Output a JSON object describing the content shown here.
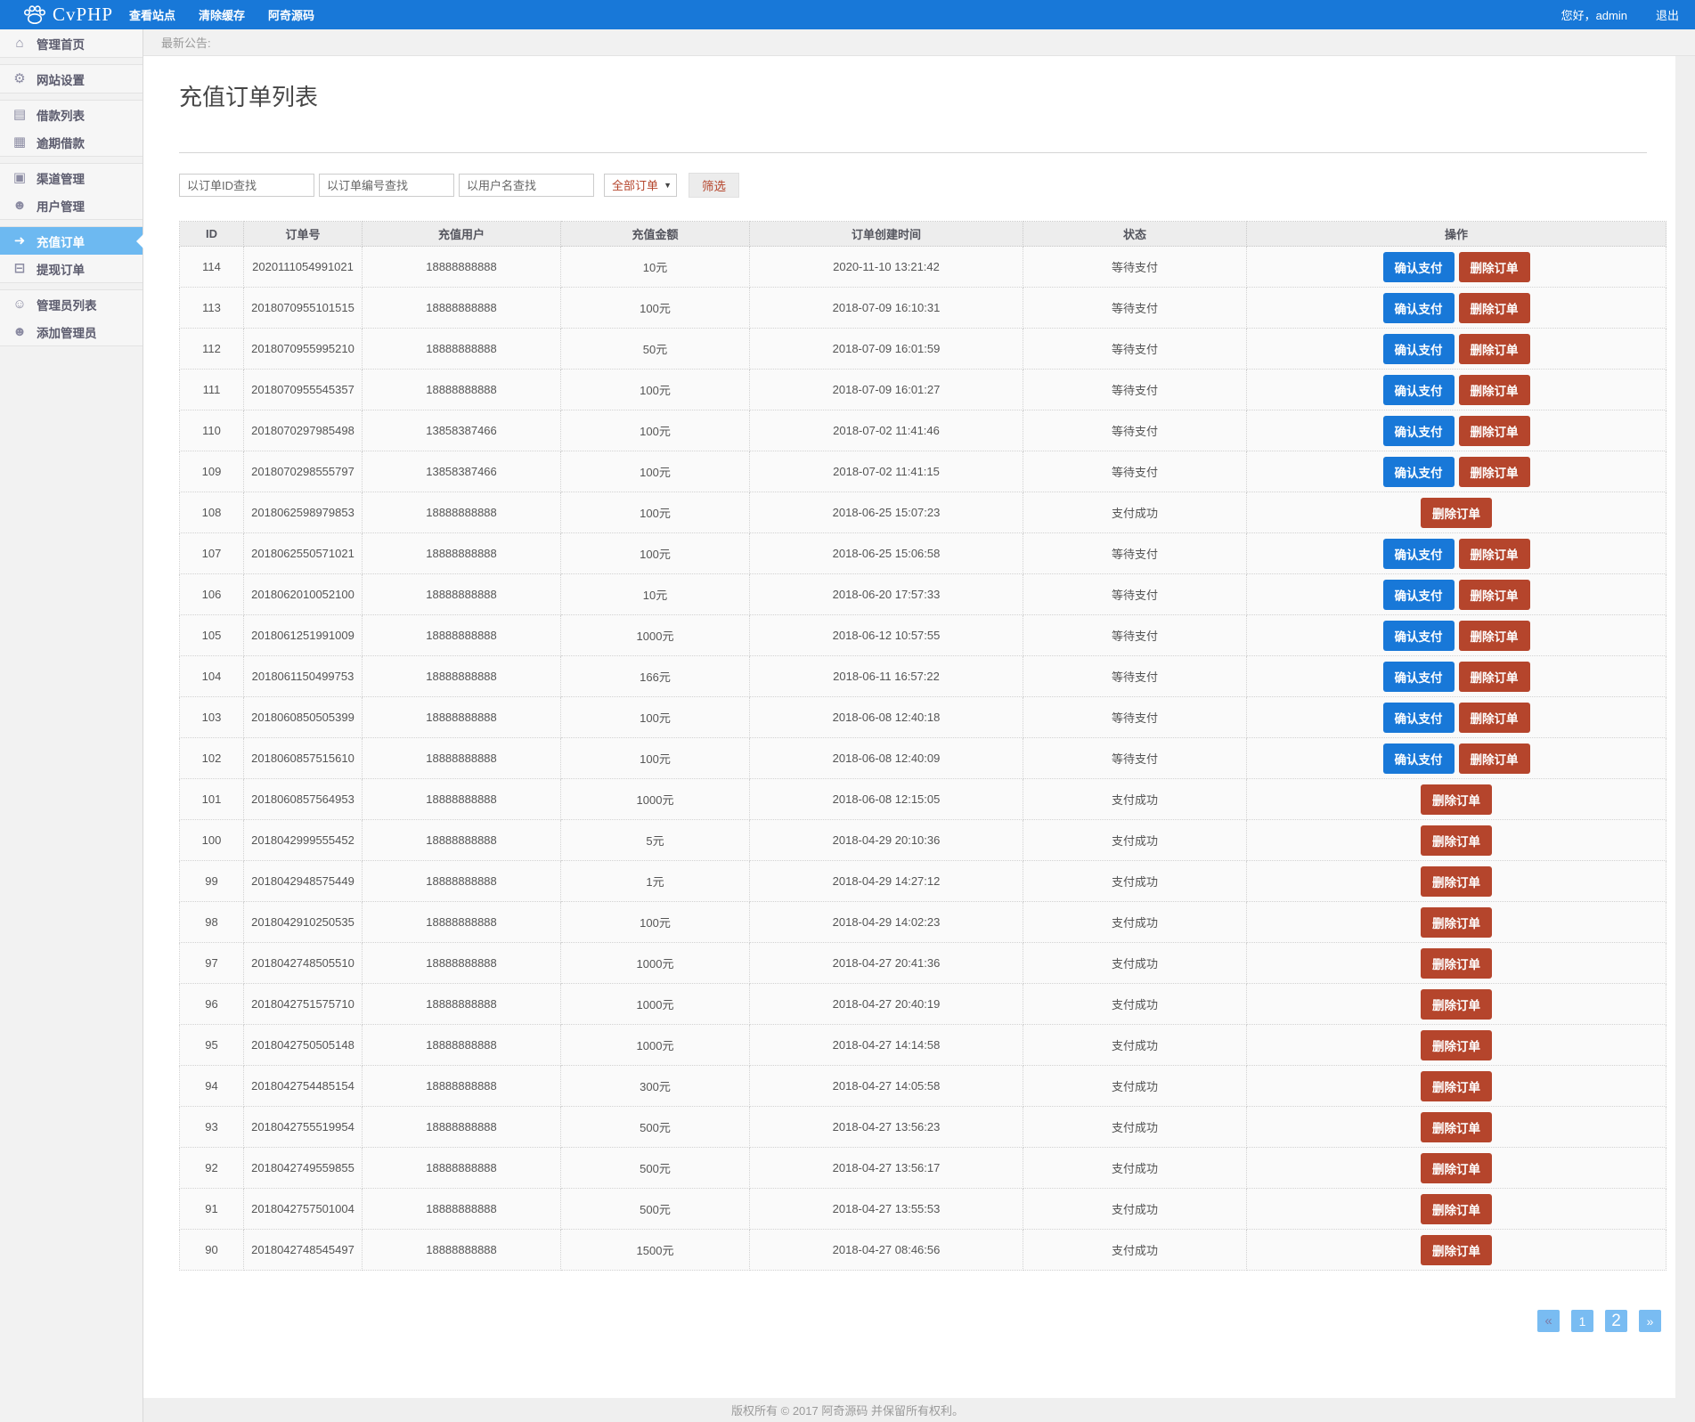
{
  "navbar": {
    "brand": "CvPHP",
    "menu": [
      {
        "key": "view-site",
        "label": "查看站点"
      },
      {
        "key": "clear-cache",
        "label": "清除缓存"
      },
      {
        "key": "aqi-source",
        "label": "阿奇源码"
      }
    ],
    "greeting": "您好，admin",
    "logout_label": "退出"
  },
  "announcement": {
    "label": "最新公告:"
  },
  "sidebar": {
    "groups": [
      {
        "items": [
          {
            "key": "home",
            "icon": "home-icon",
            "glyph": "⌂",
            "label": "管理首页"
          }
        ]
      },
      {
        "items": [
          {
            "key": "site-settings",
            "icon": "gear-icon",
            "glyph": "⚙",
            "label": "网站设置"
          }
        ]
      },
      {
        "items": [
          {
            "key": "loan-list",
            "icon": "book-icon",
            "glyph": "▤",
            "label": "借款列表"
          },
          {
            "key": "overdue-loans",
            "icon": "table-icon",
            "glyph": "▦",
            "label": "逾期借款"
          }
        ]
      },
      {
        "items": [
          {
            "key": "channel-management",
            "icon": "bookmark-icon",
            "glyph": "▣",
            "label": "渠道管理"
          },
          {
            "key": "user-management",
            "icon": "user-icon",
            "glyph": "☻",
            "label": "用户管理"
          }
        ]
      },
      {
        "items": [
          {
            "key": "recharge-orders",
            "icon": "sign-in-icon",
            "glyph": "➜",
            "label": "充值订单",
            "active": true
          },
          {
            "key": "withdraw-orders",
            "icon": "money-icon",
            "glyph": "⊟",
            "label": "提现订单"
          }
        ]
      },
      {
        "items": [
          {
            "key": "admin-list",
            "icon": "user-outline-icon",
            "glyph": "☺",
            "label": "管理员列表"
          },
          {
            "key": "add-admin",
            "icon": "user-add-icon",
            "glyph": "☻",
            "label": "添加管理员"
          }
        ]
      }
    ]
  },
  "page": {
    "title": "充值订单列表"
  },
  "filters": {
    "order_id_placeholder": "以订单ID查找",
    "order_no_placeholder": "以订单编号查找",
    "username_placeholder": "以用户名查找",
    "status_selected": "全部订单",
    "submit_label": "筛选"
  },
  "table": {
    "headers": [
      "ID",
      "订单号",
      "充值用户",
      "充值金额",
      "订单创建时间",
      "状态",
      "操作"
    ],
    "confirm_label": "确认支付",
    "delete_label": "删除订单",
    "rows": [
      {
        "id": "114",
        "order_no": "2020111054991021",
        "user": "18888888888",
        "amount": "10元",
        "created": "2020-11-10 13:21:42",
        "status": "等待支付",
        "actions": [
          "confirm",
          "delete"
        ]
      },
      {
        "id": "113",
        "order_no": "2018070955101515",
        "user": "18888888888",
        "amount": "100元",
        "created": "2018-07-09 16:10:31",
        "status": "等待支付",
        "actions": [
          "confirm",
          "delete"
        ]
      },
      {
        "id": "112",
        "order_no": "2018070955995210",
        "user": "18888888888",
        "amount": "50元",
        "created": "2018-07-09 16:01:59",
        "status": "等待支付",
        "actions": [
          "confirm",
          "delete"
        ]
      },
      {
        "id": "111",
        "order_no": "2018070955545357",
        "user": "18888888888",
        "amount": "100元",
        "created": "2018-07-09 16:01:27",
        "status": "等待支付",
        "actions": [
          "confirm",
          "delete"
        ]
      },
      {
        "id": "110",
        "order_no": "2018070297985498",
        "user": "13858387466",
        "amount": "100元",
        "created": "2018-07-02 11:41:46",
        "status": "等待支付",
        "actions": [
          "confirm",
          "delete"
        ]
      },
      {
        "id": "109",
        "order_no": "2018070298555797",
        "user": "13858387466",
        "amount": "100元",
        "created": "2018-07-02 11:41:15",
        "status": "等待支付",
        "actions": [
          "confirm",
          "delete"
        ]
      },
      {
        "id": "108",
        "order_no": "2018062598979853",
        "user": "18888888888",
        "amount": "100元",
        "created": "2018-06-25 15:07:23",
        "status": "支付成功",
        "actions": [
          "delete"
        ]
      },
      {
        "id": "107",
        "order_no": "2018062550571021",
        "user": "18888888888",
        "amount": "100元",
        "created": "2018-06-25 15:06:58",
        "status": "等待支付",
        "actions": [
          "confirm",
          "delete"
        ]
      },
      {
        "id": "106",
        "order_no": "2018062010052100",
        "user": "18888888888",
        "amount": "10元",
        "created": "2018-06-20 17:57:33",
        "status": "等待支付",
        "actions": [
          "confirm",
          "delete"
        ]
      },
      {
        "id": "105",
        "order_no": "2018061251991009",
        "user": "18888888888",
        "amount": "1000元",
        "created": "2018-06-12 10:57:55",
        "status": "等待支付",
        "actions": [
          "confirm",
          "delete"
        ]
      },
      {
        "id": "104",
        "order_no": "2018061150499753",
        "user": "18888888888",
        "amount": "166元",
        "created": "2018-06-11 16:57:22",
        "status": "等待支付",
        "actions": [
          "confirm",
          "delete"
        ]
      },
      {
        "id": "103",
        "order_no": "2018060850505399",
        "user": "18888888888",
        "amount": "100元",
        "created": "2018-06-08 12:40:18",
        "status": "等待支付",
        "actions": [
          "confirm",
          "delete"
        ]
      },
      {
        "id": "102",
        "order_no": "2018060857515610",
        "user": "18888888888",
        "amount": "100元",
        "created": "2018-06-08 12:40:09",
        "status": "等待支付",
        "actions": [
          "confirm",
          "delete"
        ]
      },
      {
        "id": "101",
        "order_no": "2018060857564953",
        "user": "18888888888",
        "amount": "1000元",
        "created": "2018-06-08 12:15:05",
        "status": "支付成功",
        "actions": [
          "delete"
        ]
      },
      {
        "id": "100",
        "order_no": "2018042999555452",
        "user": "18888888888",
        "amount": "5元",
        "created": "2018-04-29 20:10:36",
        "status": "支付成功",
        "actions": [
          "delete"
        ]
      },
      {
        "id": "99",
        "order_no": "2018042948575449",
        "user": "18888888888",
        "amount": "1元",
        "created": "2018-04-29 14:27:12",
        "status": "支付成功",
        "actions": [
          "delete"
        ]
      },
      {
        "id": "98",
        "order_no": "2018042910250535",
        "user": "18888888888",
        "amount": "100元",
        "created": "2018-04-29 14:02:23",
        "status": "支付成功",
        "actions": [
          "delete"
        ]
      },
      {
        "id": "97",
        "order_no": "2018042748505510",
        "user": "18888888888",
        "amount": "1000元",
        "created": "2018-04-27 20:41:36",
        "status": "支付成功",
        "actions": [
          "delete"
        ]
      },
      {
        "id": "96",
        "order_no": "2018042751575710",
        "user": "18888888888",
        "amount": "1000元",
        "created": "2018-04-27 20:40:19",
        "status": "支付成功",
        "actions": [
          "delete"
        ]
      },
      {
        "id": "95",
        "order_no": "2018042750505148",
        "user": "18888888888",
        "amount": "1000元",
        "created": "2018-04-27 14:14:58",
        "status": "支付成功",
        "actions": [
          "delete"
        ]
      },
      {
        "id": "94",
        "order_no": "2018042754485154",
        "user": "18888888888",
        "amount": "300元",
        "created": "2018-04-27 14:05:58",
        "status": "支付成功",
        "actions": [
          "delete"
        ]
      },
      {
        "id": "93",
        "order_no": "2018042755519954",
        "user": "18888888888",
        "amount": "500元",
        "created": "2018-04-27 13:56:23",
        "status": "支付成功",
        "actions": [
          "delete"
        ]
      },
      {
        "id": "92",
        "order_no": "2018042749559855",
        "user": "18888888888",
        "amount": "500元",
        "created": "2018-04-27 13:56:17",
        "status": "支付成功",
        "actions": [
          "delete"
        ]
      },
      {
        "id": "91",
        "order_no": "2018042757501004",
        "user": "18888888888",
        "amount": "500元",
        "created": "2018-04-27 13:55:53",
        "status": "支付成功",
        "actions": [
          "delete"
        ]
      },
      {
        "id": "90",
        "order_no": "2018042748545497",
        "user": "18888888888",
        "amount": "1500元",
        "created": "2018-04-27 08:46:56",
        "status": "支付成功",
        "actions": [
          "delete"
        ]
      }
    ]
  },
  "pagination": {
    "items": [
      {
        "key": "prev",
        "label": "«"
      },
      {
        "key": "page-1",
        "label": "1"
      },
      {
        "key": "page-2",
        "label": "2",
        "current": true
      },
      {
        "key": "next",
        "label": "»"
      }
    ]
  },
  "footer": {
    "copyright": "版权所有 © 2017 阿奇源码 并保留所有权利。"
  },
  "colors": {
    "navbar": "#1878d8",
    "sidebar_active": "#6db9f1",
    "confirm_button": "#1878d8",
    "delete_button": "#b5452c",
    "filter_accent_text": "#b5452c",
    "pagination_box": "#79bcf2"
  }
}
